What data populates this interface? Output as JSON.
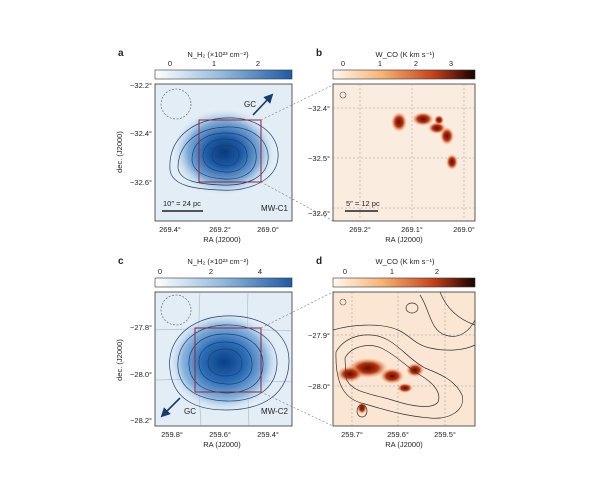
{
  "panels": {
    "a": {
      "letter": "a",
      "colorbar": {
        "title": "N_H₂ (×10²³ cm⁻²)",
        "ticks": [
          "0",
          "1",
          "2"
        ]
      },
      "yticks": [
        "−32.2°",
        "−32.4°",
        "−32.6°"
      ],
      "xticks": [
        "269.4°",
        "269.2°",
        "269.0°"
      ],
      "xlabel": "RA (J2000)",
      "ylabel": "dec. (J2000)",
      "arrow_label": "GC",
      "scalebar": "10″ = 24 pc",
      "name": "MW-C1"
    },
    "b": {
      "letter": "b",
      "colorbar": {
        "title": "W_CO (K km s⁻¹)",
        "ticks": [
          "0",
          "1",
          "2",
          "3"
        ]
      },
      "yticks": [
        "−32.4°",
        "−32.5°",
        "−32.6°"
      ],
      "xticks": [
        "269.2°",
        "269.1°",
        "269.0°"
      ],
      "xlabel": "RA (J2000)",
      "scalebar": "5″ = 12 pc"
    },
    "c": {
      "letter": "c",
      "colorbar": {
        "title": "N_H₂ (×10²³ cm⁻²)",
        "ticks": [
          "0",
          "2",
          "4"
        ]
      },
      "yticks": [
        "−27.8°",
        "−28.0°",
        "−28.2°"
      ],
      "xticks": [
        "259.8°",
        "259.6°",
        "259.4°"
      ],
      "xlabel": "RA (J2000)",
      "ylabel": "dec. (J2000)",
      "arrow_label": "GC",
      "name": "MW-C2"
    },
    "d": {
      "letter": "d",
      "colorbar": {
        "title": "W_CO (K km s⁻¹)",
        "ticks": [
          "0",
          "1",
          "2"
        ]
      },
      "yticks": [
        "−27.9°",
        "−28.0°"
      ],
      "xticks": [
        "259.7°",
        "259.6°",
        "259.5°"
      ],
      "xlabel": "RA (J2000)"
    }
  },
  "colors": {
    "blue": "#2f6bb0",
    "dark_blue": "#0b3a78",
    "orange": "#f08a3c",
    "dark_red": "#7a1606",
    "box": "#8a2740"
  }
}
